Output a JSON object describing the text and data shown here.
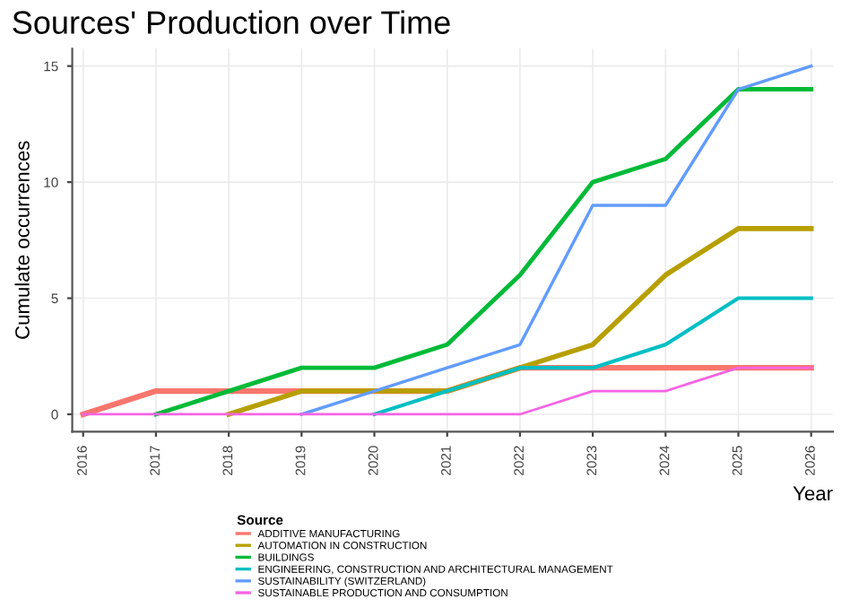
{
  "chart_data": {
    "type": "line",
    "title": "Sources' Production over Time",
    "xlabel": "Year",
    "ylabel": "Cumulate occurrences",
    "legend_title": "Source",
    "legend": "bottom",
    "grid": true,
    "x": [
      2016,
      2017,
      2018,
      2019,
      2020,
      2021,
      2022,
      2023,
      2024,
      2025,
      2026
    ],
    "xlim": [
      2015.85,
      2026.3
    ],
    "xticks": [
      2016,
      2017,
      2018,
      2019,
      2020,
      2021,
      2022,
      2023,
      2024,
      2025,
      2026
    ],
    "ylim": [
      -0.75,
      15.75
    ],
    "yticks": [
      0,
      5,
      10,
      15
    ],
    "series": [
      {
        "name": "ADDITIVE MANUFACTURING",
        "color": "#f8766d",
        "values": [
          0,
          1,
          1,
          1,
          1,
          1,
          2,
          2,
          2,
          2,
          2
        ]
      },
      {
        "name": "AUTOMATION IN CONSTRUCTION",
        "color": "#b79f00",
        "values": [
          null,
          null,
          0,
          1,
          1,
          1,
          2,
          3,
          6,
          8,
          8
        ]
      },
      {
        "name": "BUILDINGS",
        "color": "#00ba38",
        "values": [
          null,
          0,
          1,
          2,
          2,
          3,
          6,
          10,
          11,
          14,
          14
        ]
      },
      {
        "name": "ENGINEERING, CONSTRUCTION AND ARCHITECTURAL MANAGEMENT",
        "color": "#00bfc4",
        "values": [
          null,
          null,
          null,
          null,
          0,
          1,
          2,
          2,
          3,
          5,
          5
        ]
      },
      {
        "name": "SUSTAINABILITY (SWITZERLAND)",
        "color": "#619cff",
        "values": [
          null,
          null,
          null,
          0,
          1,
          2,
          3,
          9,
          9,
          14,
          15
        ]
      },
      {
        "name": "SUSTAINABLE PRODUCTION AND CONSUMPTION",
        "color": "#f564e3",
        "values": [
          0,
          0,
          0,
          0,
          0,
          0,
          0,
          1,
          1,
          2,
          2
        ]
      }
    ]
  }
}
